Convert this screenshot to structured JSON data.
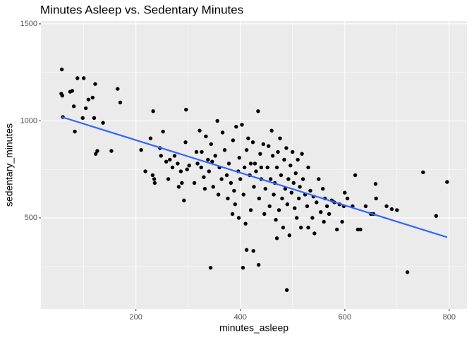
{
  "chart_data": {
    "type": "scatter",
    "title": "Minutes Asleep vs. Sedentary Minutes",
    "x_label": "minutes_asleep",
    "y_label": "sedentary_minutes",
    "xlim": [
      18,
      834
    ],
    "ylim": [
      31,
      1514
    ],
    "xticks": [
      200,
      400,
      600,
      800
    ],
    "yticks": [
      500,
      1000,
      1500
    ],
    "x_minor_ticks": [
      100,
      300,
      500,
      700
    ],
    "y_minor_ticks": [
      250,
      750,
      1250
    ],
    "grid": true,
    "point_color": "#000000",
    "points": [
      [
        58,
        1265
      ],
      [
        57,
        1140
      ],
      [
        59,
        1130
      ],
      [
        88,
        1220
      ],
      [
        74,
        1150
      ],
      [
        78,
        1155
      ],
      [
        100,
        1220
      ],
      [
        122,
        1190
      ],
      [
        104,
        1065
      ],
      [
        109,
        1110
      ],
      [
        117,
        1120
      ],
      [
        165,
        1165
      ],
      [
        170,
        1095
      ],
      [
        60,
        1020
      ],
      [
        81,
        1075
      ],
      [
        98,
        1015
      ],
      [
        120,
        1015
      ],
      [
        137,
        990
      ],
      [
        83,
        945
      ],
      [
        123,
        830
      ],
      [
        126,
        845
      ],
      [
        153,
        845
      ],
      [
        233,
        1050
      ],
      [
        296,
        1058
      ],
      [
        210,
        850
      ],
      [
        218,
        740
      ],
      [
        228,
        910
      ],
      [
        232,
        720
      ],
      [
        235,
        700
      ],
      [
        236,
        680
      ],
      [
        246,
        860
      ],
      [
        248,
        820
      ],
      [
        252,
        945
      ],
      [
        258,
        790
      ],
      [
        265,
        800
      ],
      [
        270,
        760
      ],
      [
        274,
        820
      ],
      [
        280,
        780
      ],
      [
        286,
        740
      ],
      [
        288,
        680
      ],
      [
        292,
        590
      ],
      [
        295,
        890
      ],
      [
        298,
        750
      ],
      [
        302,
        770
      ],
      [
        282,
        660
      ],
      [
        262,
        700
      ],
      [
        312,
        680
      ],
      [
        318,
        780
      ],
      [
        322,
        950
      ],
      [
        326,
        840
      ],
      [
        330,
        710
      ],
      [
        334,
        920
      ],
      [
        338,
        800
      ],
      [
        340,
        740
      ],
      [
        344,
        880
      ],
      [
        348,
        660
      ],
      [
        352,
        820
      ],
      [
        356,
        1000
      ],
      [
        360,
        760
      ],
      [
        364,
        700
      ],
      [
        366,
        940
      ],
      [
        370,
        850
      ],
      [
        374,
        720
      ],
      [
        376,
        600
      ],
      [
        378,
        780
      ],
      [
        332,
        650
      ],
      [
        346,
        790
      ],
      [
        358,
        620
      ],
      [
        316,
        840
      ],
      [
        325,
        760
      ],
      [
        382,
        680
      ],
      [
        386,
        900
      ],
      [
        388,
        640
      ],
      [
        390,
        570
      ],
      [
        392,
        970
      ],
      [
        396,
        740
      ],
      [
        398,
        810
      ],
      [
        400,
        700
      ],
      [
        403,
        980
      ],
      [
        406,
        620
      ],
      [
        408,
        760
      ],
      [
        410,
        470
      ],
      [
        412,
        850
      ],
      [
        415,
        910
      ],
      [
        418,
        720
      ],
      [
        420,
        540
      ],
      [
        424,
        890
      ],
      [
        426,
        660
      ],
      [
        428,
        780
      ],
      [
        430,
        740
      ],
      [
        434,
        1050
      ],
      [
        436,
        600
      ],
      [
        438,
        830
      ],
      [
        440,
        700
      ],
      [
        444,
        880
      ],
      [
        446,
        520
      ],
      [
        448,
        650
      ],
      [
        397,
        500
      ],
      [
        385,
        520
      ],
      [
        420,
        780
      ],
      [
        440,
        760
      ],
      [
        452,
        760
      ],
      [
        454,
        870
      ],
      [
        456,
        560
      ],
      [
        458,
        700
      ],
      [
        460,
        950
      ],
      [
        462,
        820
      ],
      [
        464,
        620
      ],
      [
        466,
        680
      ],
      [
        468,
        490
      ],
      [
        470,
        760
      ],
      [
        472,
        840
      ],
      [
        474,
        540
      ],
      [
        476,
        910
      ],
      [
        478,
        720
      ],
      [
        480,
        600
      ],
      [
        482,
        450
      ],
      [
        484,
        800
      ],
      [
        486,
        650
      ],
      [
        488,
        860
      ],
      [
        490,
        570
      ],
      [
        492,
        700
      ],
      [
        494,
        410
      ],
      [
        496,
        770
      ],
      [
        498,
        630
      ],
      [
        500,
        840
      ],
      [
        502,
        680
      ],
      [
        504,
        550
      ],
      [
        506,
        730
      ],
      [
        508,
        500
      ],
      [
        510,
        800
      ],
      [
        512,
        600
      ],
      [
        514,
        660
      ],
      [
        516,
        450
      ],
      [
        518,
        830
      ],
      [
        520,
        700
      ],
      [
        524,
        620
      ],
      [
        528,
        560
      ],
      [
        530,
        760
      ],
      [
        534,
        640
      ],
      [
        538,
        500
      ],
      [
        542,
        420
      ],
      [
        546,
        580
      ],
      [
        550,
        700
      ],
      [
        554,
        530
      ],
      [
        558,
        650
      ],
      [
        562,
        600
      ],
      [
        566,
        560
      ],
      [
        570,
        520
      ],
      [
        575,
        590
      ],
      [
        580,
        580
      ],
      [
        585,
        440
      ],
      [
        590,
        570
      ],
      [
        595,
        480
      ],
      [
        598,
        560
      ],
      [
        600,
        630
      ],
      [
        540,
        610
      ],
      [
        560,
        480
      ],
      [
        530,
        450
      ],
      [
        605,
        600
      ],
      [
        615,
        560
      ],
      [
        620,
        720
      ],
      [
        625,
        440
      ],
      [
        630,
        440
      ],
      [
        640,
        560
      ],
      [
        650,
        520
      ],
      [
        655,
        520
      ],
      [
        659,
        675
      ],
      [
        660,
        600
      ],
      [
        680,
        560
      ],
      [
        690,
        545
      ],
      [
        700,
        540
      ],
      [
        720,
        220
      ],
      [
        750,
        735
      ],
      [
        775,
        510
      ],
      [
        796,
        685
      ],
      [
        343,
        243
      ],
      [
        405,
        243
      ],
      [
        435,
        258
      ],
      [
        489,
        128
      ],
      [
        412,
        335
      ],
      [
        425,
        330
      ],
      [
        470,
        395
      ]
    ],
    "trend": {
      "color": "#3366FF",
      "x": [
        58,
        796
      ],
      "values": [
        1020,
        400
      ]
    }
  }
}
